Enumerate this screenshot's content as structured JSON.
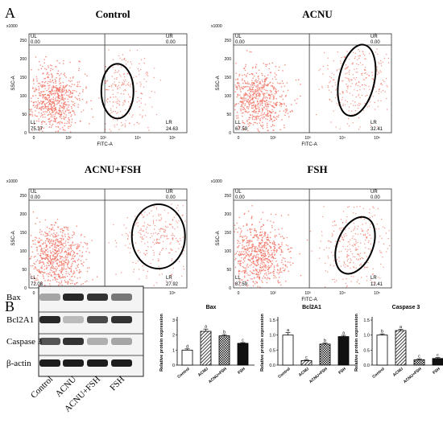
{
  "figure": {
    "panel_a_label": "A",
    "panel_b_label": "B"
  },
  "flow": {
    "scale_label": "x1000",
    "y_ticks": [
      "0",
      "50",
      "100",
      "150",
      "200",
      "250"
    ],
    "x_ticks": [
      "0",
      "10²",
      "10³",
      "10⁴",
      "10⁵"
    ],
    "xlabel": "FITC-A",
    "ylabel": "SSC-A",
    "quadrant_labels": {
      "ul": "UL",
      "ur": "UR",
      "ll": "LL",
      "lr": "LR"
    },
    "dot_color": "#f06a5a",
    "plots": [
      {
        "title": "Control",
        "ul": "0.00",
        "ur": "0.00",
        "ll": "75.37",
        "lr": "24.63"
      },
      {
        "title": "ACNU",
        "ul": "0.00",
        "ur": "0.00",
        "ll": "67.59",
        "lr": "32.41"
      },
      {
        "title": "ACNU+FSH",
        "ul": "0.00",
        "ur": "0.00",
        "ll": "72.08",
        "lr": "27.92"
      },
      {
        "title": "FSH",
        "ul": "0.00",
        "ur": "0.00",
        "ll": "87.59",
        "lr": "12.41"
      }
    ]
  },
  "blot": {
    "rows": [
      "Bax",
      "Bcl2A1",
      "Caspase 3",
      "β-actin"
    ],
    "lanes": [
      "Control",
      "ACNU",
      "ACNU+FSH",
      "FSH"
    ]
  },
  "chart_data": [
    {
      "type": "bar",
      "title": "Bax",
      "ylabel": "Relative protein expression",
      "categories": [
        "Control",
        "ACNU",
        "ACNU+FSH",
        "FSH"
      ],
      "values": [
        1.0,
        2.25,
        1.95,
        1.45
      ],
      "errors": [
        0.08,
        0.15,
        0.08,
        0.05
      ],
      "sig": [
        "d",
        "a",
        "b",
        "c"
      ],
      "ylim": [
        0,
        3
      ],
      "yticks": [
        "0",
        "1",
        "2",
        "3"
      ]
    },
    {
      "type": "bar",
      "title": "Bcl2A1",
      "ylabel": "Relative protein expression",
      "categories": [
        "Control",
        "ACNU",
        "ACNU+FSH",
        "FSH"
      ],
      "values": [
        1.0,
        0.15,
        0.7,
        0.95
      ],
      "errors": [
        0.08,
        0.03,
        0.04,
        0.04
      ],
      "sig": [
        "a",
        "c",
        "b",
        "a"
      ],
      "ylim": [
        0,
        1.5
      ],
      "yticks": [
        "0.0",
        "0.5",
        "1.0",
        "1.5"
      ]
    },
    {
      "type": "bar",
      "title": "Caspase 3",
      "ylabel": "Relative protein expression",
      "categories": [
        "Control",
        "ACNU",
        "ACNU+FSH",
        "FSH"
      ],
      "values": [
        1.0,
        1.15,
        0.18,
        0.22
      ],
      "errors": [
        0.04,
        0.04,
        0.03,
        0.03
      ],
      "sig": [
        "b",
        "a",
        "c",
        "c"
      ],
      "ylim": [
        0,
        1.5
      ],
      "yticks": [
        "0.0",
        "0.5",
        "1.0",
        "1.5"
      ]
    }
  ]
}
